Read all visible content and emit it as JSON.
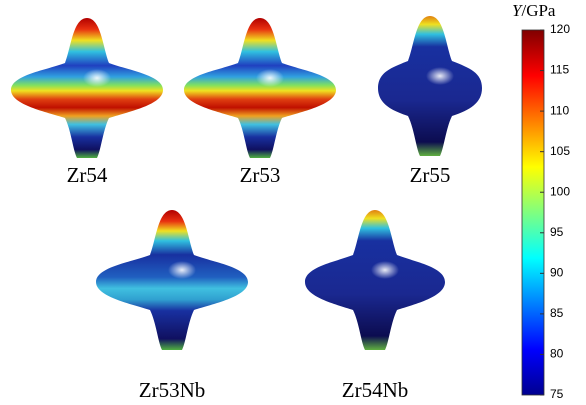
{
  "panels": [
    {
      "label": "Zr54"
    },
    {
      "label": "Zr53"
    },
    {
      "label": "Zr55"
    },
    {
      "label": "Zr53Nb"
    },
    {
      "label": "Zr54Nb"
    }
  ],
  "colorbar": {
    "title_symbol": "Y",
    "title_unit": "/GPa",
    "lim": [
      75,
      120
    ],
    "ticks": [
      75,
      80,
      85,
      90,
      95,
      100,
      105,
      110,
      115,
      120
    ]
  }
}
